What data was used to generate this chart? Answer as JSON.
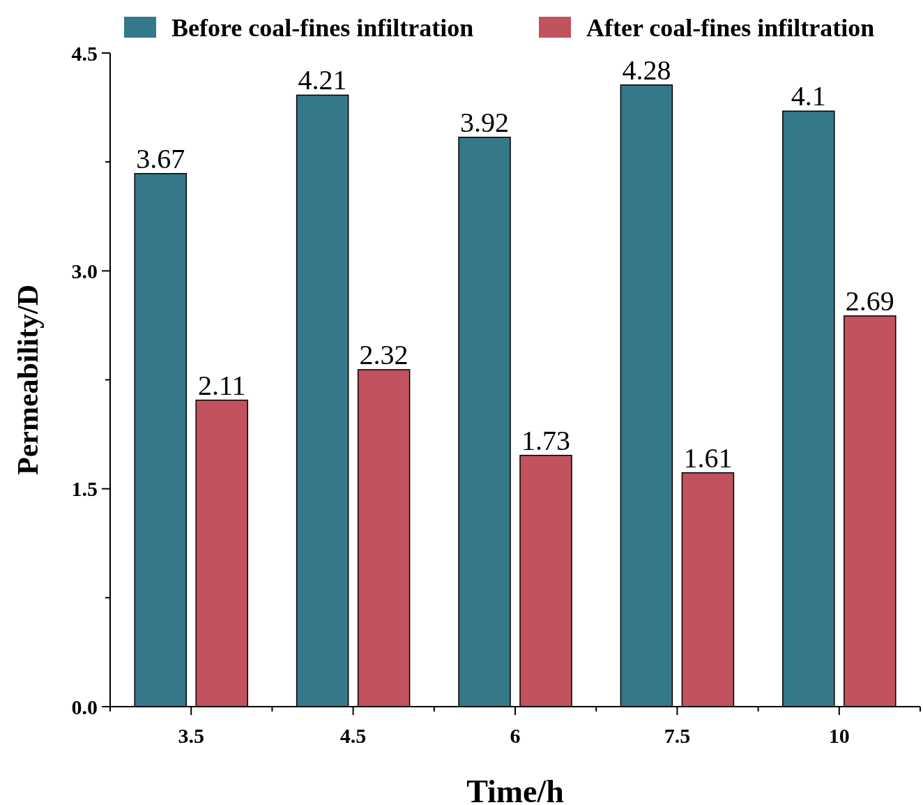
{
  "chart_data": {
    "type": "bar",
    "xlabel": "Time/h",
    "ylabel": "Permeability/D",
    "categories": [
      "3.5",
      "4.5",
      "6",
      "7.5",
      "10"
    ],
    "series": [
      {
        "name": "Before coal-fines infiltration",
        "color": "#34788a",
        "values": [
          3.67,
          4.21,
          3.92,
          4.28,
          4.1
        ]
      },
      {
        "name": "After coal-fines infiltration",
        "color": "#c1525e",
        "values": [
          2.11,
          2.32,
          1.73,
          1.61,
          2.69
        ]
      }
    ],
    "ylim": [
      0,
      4.5
    ],
    "yticks": [
      {
        "value": 0,
        "label": "0.0"
      },
      {
        "value": 0.75,
        "label": null
      },
      {
        "value": 1.5,
        "label": "1.5"
      },
      {
        "value": 2.25,
        "label": null
      },
      {
        "value": 3,
        "label": "3.0"
      },
      {
        "value": 3.75,
        "label": null
      },
      {
        "value": 4.5,
        "label": "4.5"
      }
    ],
    "data_labels": true,
    "legend": "top",
    "grid": false
  }
}
